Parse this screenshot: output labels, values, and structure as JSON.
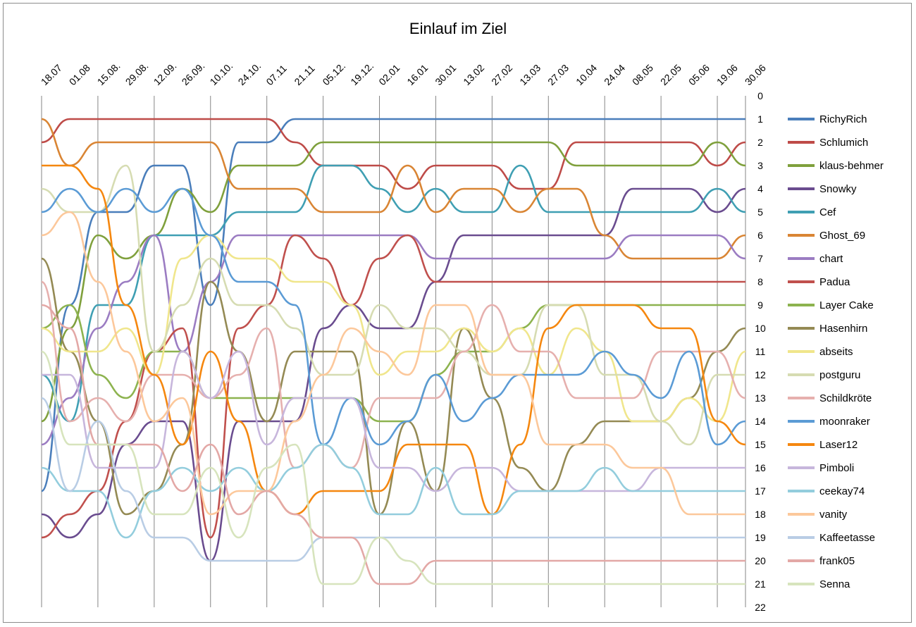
{
  "chart_data": {
    "type": "line",
    "title": "Einlauf im Ziel",
    "xlabel": "",
    "ylabel": "",
    "y_reversed": true,
    "ylim": [
      0,
      22
    ],
    "y_ticks": [
      "0",
      "1",
      "2",
      "3",
      "4",
      "5",
      "6",
      "7",
      "8",
      "9",
      "10",
      "11",
      "12",
      "13",
      "14",
      "15",
      "16",
      "17",
      "18",
      "19",
      "20",
      "21",
      "22"
    ],
    "grid": "vertical",
    "legend_position": "right",
    "categories": [
      "18.07",
      "01.08",
      "15.08.",
      "29.08.",
      "12.09.",
      "26.09.",
      "10.10.",
      "24.10.",
      "07.11",
      "21.11",
      "05.12.",
      "19.12.",
      "02.01",
      "16.01",
      "30.01",
      "13.02",
      "27.02",
      "13.03",
      "27.03",
      "10.04",
      "24.04",
      "08.05",
      "22.05",
      "05.06",
      "19.06",
      "30.06"
    ],
    "series": [
      {
        "name": "RichyRich",
        "color": "#4a7ebb",
        "values": [
          17,
          9,
          5,
          5,
          3,
          3,
          9,
          2,
          2,
          1,
          1,
          1,
          1,
          1,
          1,
          1,
          1,
          1,
          1,
          1,
          1,
          1,
          1,
          1,
          1,
          1
        ]
      },
      {
        "name": "Schlumich",
        "color": "#be4b48",
        "values": [
          2,
          1,
          1,
          1,
          1,
          1,
          1,
          1,
          1,
          2,
          3,
          3,
          3,
          4,
          3,
          3,
          3,
          4,
          4,
          2,
          2,
          2,
          2,
          2,
          3,
          2
        ]
      },
      {
        "name": "klaus-behmer",
        "color": "#7fa03c",
        "values": [
          14,
          10,
          6,
          7,
          6,
          4,
          5,
          3,
          3,
          3,
          2,
          2,
          2,
          2,
          2,
          2,
          2,
          2,
          2,
          3,
          3,
          3,
          3,
          3,
          2,
          3
        ]
      },
      {
        "name": "Snowky",
        "color": "#6a4c8f",
        "values": [
          18,
          19,
          18,
          15,
          14,
          14,
          20,
          14,
          14,
          14,
          10,
          9,
          10,
          10,
          8,
          6,
          6,
          6,
          6,
          6,
          6,
          4,
          4,
          4,
          5,
          4
        ]
      },
      {
        "name": "Cef",
        "color": "#3f9fb3",
        "values": [
          12,
          14,
          9,
          9,
          6,
          6,
          6,
          5,
          5,
          5,
          3,
          3,
          4,
          5,
          4,
          5,
          5,
          3,
          5,
          5,
          5,
          5,
          5,
          5,
          4,
          5
        ]
      },
      {
        "name": "Ghost_69",
        "color": "#d98534",
        "values": [
          1,
          3,
          2,
          2,
          2,
          2,
          2,
          4,
          4,
          4,
          5,
          5,
          5,
          3,
          5,
          4,
          4,
          5,
          4,
          4,
          6,
          7,
          7,
          7,
          7,
          6
        ]
      },
      {
        "name": "chart",
        "color": "#9b7cc2",
        "values": [
          15,
          13,
          10,
          8,
          6,
          11,
          8,
          6,
          6,
          6,
          6,
          6,
          6,
          6,
          7,
          7,
          7,
          7,
          7,
          7,
          7,
          6,
          6,
          6,
          6,
          7
        ]
      },
      {
        "name": "Padua",
        "color": "#c0504d",
        "values": [
          19,
          18,
          17,
          14,
          11,
          10,
          19,
          10,
          9,
          6,
          7,
          9,
          7,
          6,
          8,
          8,
          8,
          8,
          8,
          8,
          8,
          8,
          8,
          8,
          8,
          8
        ]
      },
      {
        "name": "Layer Cake",
        "color": "#8db34f",
        "values": [
          10,
          9,
          12,
          13,
          11,
          11,
          13,
          13,
          13,
          13,
          13,
          13,
          14,
          14,
          12,
          11,
          11,
          10,
          9,
          9,
          9,
          9,
          9,
          9,
          9,
          9
        ]
      },
      {
        "name": "Hasenhirn",
        "color": "#948a54",
        "values": [
          7,
          11,
          14,
          18,
          17,
          15,
          8,
          11,
          14,
          11,
          11,
          11,
          18,
          14,
          17,
          10,
          13,
          16,
          17,
          15,
          14,
          14,
          14,
          13,
          11,
          10
        ]
      },
      {
        "name": "abseits",
        "color": "#f0e68c",
        "values": [
          10,
          11,
          11,
          10,
          12,
          7,
          6,
          7,
          7,
          8,
          8,
          9,
          12,
          11,
          11,
          10,
          11,
          10,
          12,
          10,
          11,
          14,
          14,
          13,
          14,
          11
        ]
      },
      {
        "name": "postguru",
        "color": "#d6dcb2",
        "values": [
          4,
          5,
          5,
          3,
          11,
          9,
          7,
          9,
          9,
          10,
          12,
          12,
          9,
          10,
          10,
          11,
          12,
          12,
          9,
          9,
          12,
          12,
          14,
          15,
          12,
          12
        ]
      },
      {
        "name": "Schildkröte",
        "color": "#e6b0ae",
        "values": [
          8,
          14,
          13,
          14,
          12,
          12,
          13,
          12,
          10,
          16,
          15,
          16,
          13,
          13,
          13,
          11,
          9,
          11,
          11,
          13,
          13,
          13,
          11,
          11,
          11,
          13
        ]
      },
      {
        "name": "moonraker",
        "color": "#5b9bd5",
        "values": [
          5,
          4,
          5,
          4,
          5,
          4,
          6,
          8,
          8,
          9,
          15,
          13,
          15,
          14,
          12,
          14,
          13,
          12,
          12,
          12,
          11,
          12,
          13,
          11,
          15,
          14
        ]
      },
      {
        "name": "Laser12",
        "color": "#f5870f",
        "values": [
          3,
          3,
          4,
          9,
          12,
          15,
          11,
          14,
          17,
          18,
          17,
          17,
          17,
          15,
          15,
          15,
          18,
          15,
          10,
          9,
          9,
          9,
          10,
          10,
          14,
          15
        ]
      },
      {
        "name": "Pimboli",
        "color": "#c7b6dc",
        "values": [
          12,
          12,
          16,
          16,
          16,
          11,
          13,
          11,
          15,
          13,
          13,
          13,
          16,
          16,
          17,
          16,
          16,
          17,
          17,
          17,
          17,
          17,
          16,
          16,
          16,
          16
        ]
      },
      {
        "name": "ceekay74",
        "color": "#93cddd",
        "values": [
          16,
          17,
          17,
          19,
          17,
          16,
          17,
          16,
          17,
          16,
          15,
          16,
          18,
          18,
          16,
          18,
          18,
          17,
          17,
          17,
          16,
          17,
          17,
          17,
          17,
          17
        ]
      },
      {
        "name": "vanity",
        "color": "#fcc89b",
        "values": [
          6,
          5,
          8,
          11,
          14,
          13,
          18,
          17,
          17,
          14,
          12,
          10,
          11,
          12,
          9,
          9,
          12,
          12,
          15,
          15,
          15,
          16,
          16,
          18,
          18,
          18
        ]
      },
      {
        "name": "Kaffeetasse",
        "color": "#b9cde5",
        "values": [
          13,
          17,
          14,
          17,
          19,
          19,
          20,
          20,
          20,
          20,
          19,
          19,
          19,
          19,
          19,
          19,
          19,
          19,
          19,
          19,
          19,
          19,
          19,
          19,
          19,
          19
        ]
      },
      {
        "name": "frank05",
        "color": "#e3a8a6",
        "values": [
          9,
          10,
          15,
          15,
          15,
          17,
          15,
          18,
          17,
          18,
          19,
          19,
          21,
          21,
          20,
          20,
          20,
          20,
          20,
          20,
          20,
          20,
          20,
          20,
          20,
          20
        ]
      },
      {
        "name": "Senna",
        "color": "#d7e4bd",
        "values": [
          11,
          15,
          15,
          15,
          18,
          18,
          16,
          19,
          16,
          15,
          21,
          21,
          19,
          20,
          21,
          21,
          21,
          21,
          21,
          21,
          21,
          21,
          21,
          21,
          21,
          21
        ]
      }
    ]
  }
}
